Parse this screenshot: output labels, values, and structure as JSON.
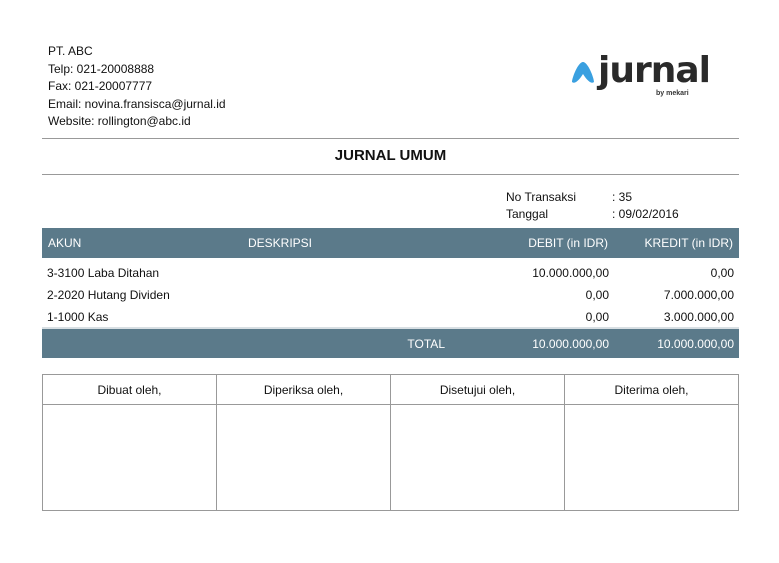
{
  "company": {
    "name": "PT. ABC",
    "phone": "Telp: 021-20008888",
    "fax": "Fax: 021-20007777",
    "email": "Email: novina.fransisca@jurnal.id",
    "website": "Website: rollington@abc.id"
  },
  "logo": {
    "word": "jurnal",
    "by": "by mekari",
    "accent": "#3aa0e0"
  },
  "title": "JURNAL UMUM",
  "meta": [
    {
      "label": "No Transaksi",
      "value": ": 35"
    },
    {
      "label": "Tanggal",
      "value": ": 09/02/2016"
    }
  ],
  "table": {
    "headers": [
      "AKUN",
      "DESKRIPSI",
      "DEBIT (in IDR)",
      "KREDIT (in IDR)"
    ],
    "rows": [
      {
        "akun": "3-3100 Laba Ditahan",
        "desc": "",
        "debit": "10.000.000,00",
        "kredit": "0,00"
      },
      {
        "akun": "2-2020 Hutang Dividen",
        "desc": "",
        "debit": "0,00",
        "kredit": "7.000.000,00"
      },
      {
        "akun": "1-1000 Kas",
        "desc": "",
        "debit": "0,00",
        "kredit": "3.000.000,00"
      }
    ],
    "total": {
      "label": "TOTAL",
      "debit": "10.000.000,00",
      "kredit": "10.000.000,00"
    },
    "header_color": "#5b7a8a"
  },
  "signatures": [
    "Dibuat oleh,",
    "Diperiksa oleh,",
    "Disetujui oleh,",
    "Diterima oleh,"
  ]
}
